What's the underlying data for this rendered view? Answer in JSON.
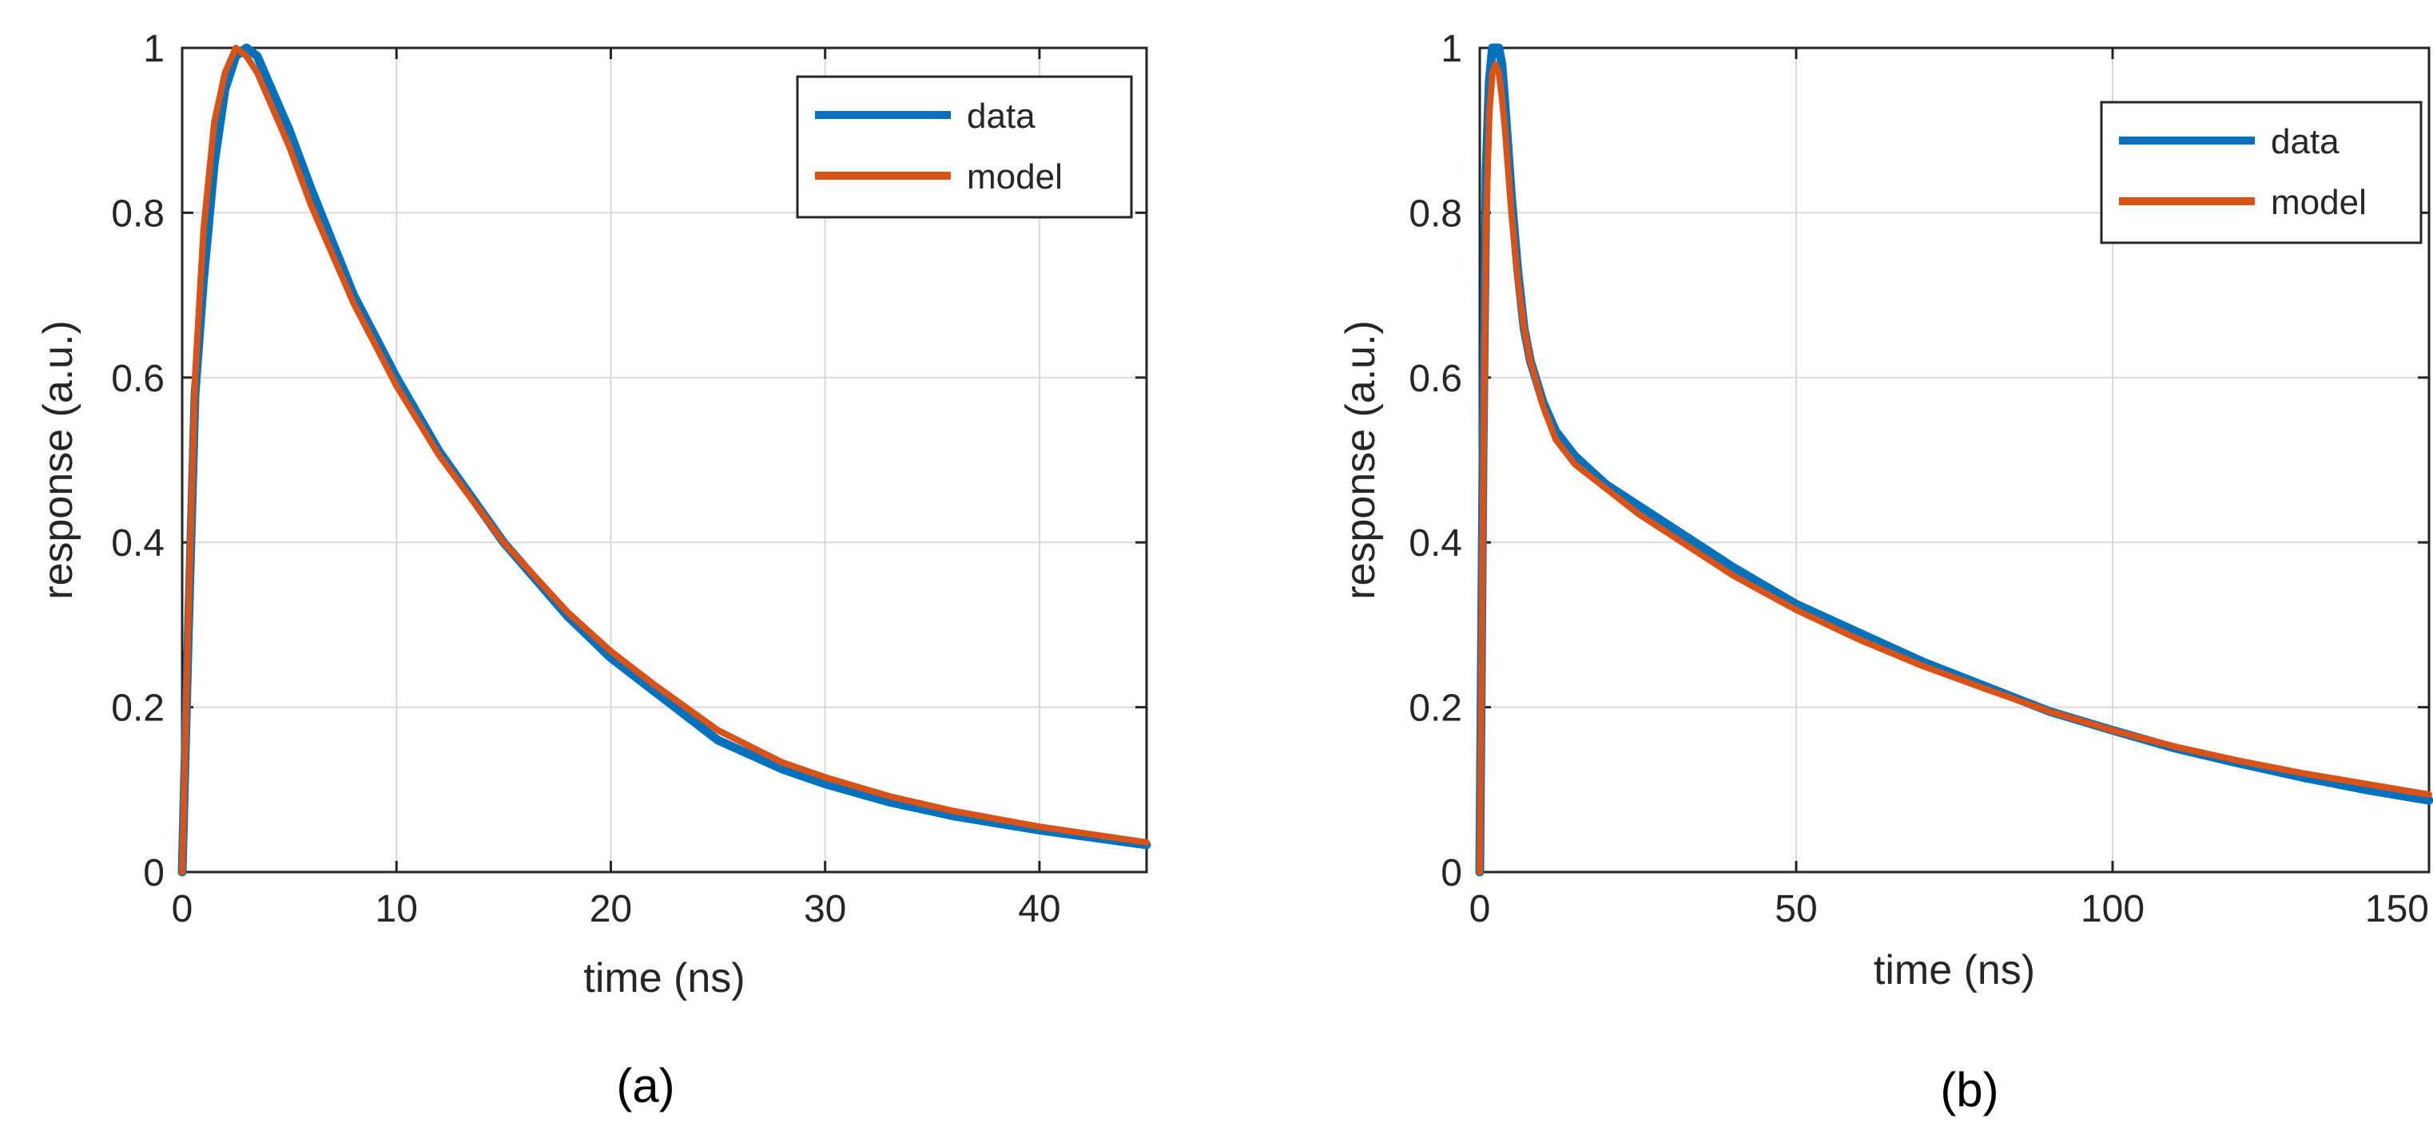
{
  "colors": {
    "data": "#0072BD",
    "model": "#D95319",
    "grid": "#d9d9d9",
    "axis": "#262626"
  },
  "chart_data": [
    {
      "type": "line",
      "caption": "(a)",
      "xlabel": "time (ns)",
      "ylabel": "response (a.u.)",
      "xlim": [
        0,
        45
      ],
      "ylim": [
        0,
        1
      ],
      "xticks": [
        0,
        10,
        20,
        30,
        40
      ],
      "yticks": [
        0,
        0.2,
        0.4,
        0.6,
        0.8,
        1
      ],
      "xtick_labels": [
        "0",
        "10",
        "20",
        "30",
        "40"
      ],
      "ytick_labels": [
        "0",
        "0.2",
        "0.4",
        "0.6",
        "0.8",
        "1"
      ],
      "grid": true,
      "legend": "top-right",
      "series": [
        {
          "name": "data",
          "x": [
            0,
            0.3,
            0.6,
            1,
            1.5,
            2,
            2.5,
            3,
            3.5,
            4,
            5,
            6,
            8,
            10,
            12,
            15,
            18,
            20,
            22,
            25,
            28,
            30,
            33,
            36,
            40,
            45
          ],
          "y": [
            0,
            0.3,
            0.58,
            0.72,
            0.86,
            0.95,
            0.99,
            1.0,
            0.99,
            0.96,
            0.9,
            0.83,
            0.7,
            0.6,
            0.51,
            0.4,
            0.31,
            0.26,
            0.22,
            0.16,
            0.125,
            0.107,
            0.085,
            0.068,
            0.051,
            0.033
          ]
        },
        {
          "name": "model",
          "x": [
            0,
            0.3,
            0.6,
            1,
            1.5,
            2,
            2.5,
            3,
            3.5,
            4,
            5,
            6,
            8,
            10,
            12,
            15,
            18,
            20,
            22,
            25,
            28,
            30,
            33,
            36,
            40,
            45
          ],
          "y": [
            0,
            0.32,
            0.6,
            0.78,
            0.91,
            0.97,
            1.0,
            0.99,
            0.97,
            0.94,
            0.88,
            0.81,
            0.69,
            0.59,
            0.505,
            0.4,
            0.315,
            0.268,
            0.228,
            0.172,
            0.133,
            0.115,
            0.092,
            0.074,
            0.055,
            0.036
          ]
        }
      ]
    },
    {
      "type": "line",
      "caption": "(b)",
      "xlabel": "time (ns)",
      "ylabel": "response (a.u.)",
      "xlim": [
        0,
        150
      ],
      "ylim": [
        0,
        1
      ],
      "xticks": [
        0,
        50,
        100,
        150
      ],
      "yticks": [
        0,
        0.2,
        0.4,
        0.6,
        0.8,
        1
      ],
      "xtick_labels": [
        "0",
        "50",
        "100",
        "150"
      ],
      "ytick_labels": [
        "0",
        "0.2",
        "0.4",
        "0.6",
        "0.8",
        "1"
      ],
      "grid": true,
      "legend": "top-right",
      "series": [
        {
          "name": "data",
          "x": [
            0,
            0.5,
            1,
            1.5,
            2,
            2.5,
            3,
            3.5,
            4,
            5,
            6,
            7,
            8,
            10,
            12,
            15,
            20,
            25,
            30,
            40,
            50,
            60,
            70,
            80,
            90,
            100,
            110,
            120,
            130,
            140,
            150
          ],
          "y": [
            0,
            0.5,
            0.85,
            0.96,
            1.0,
            1.0,
            1.0,
            0.98,
            0.93,
            0.82,
            0.73,
            0.66,
            0.62,
            0.57,
            0.535,
            0.505,
            0.47,
            0.445,
            0.42,
            0.37,
            0.325,
            0.29,
            0.255,
            0.225,
            0.195,
            0.172,
            0.15,
            0.132,
            0.115,
            0.1,
            0.087
          ]
        },
        {
          "name": "model",
          "x": [
            0,
            0.5,
            1,
            1.5,
            2,
            2.5,
            3,
            3.5,
            4,
            5,
            6,
            7,
            8,
            10,
            12,
            15,
            20,
            25,
            30,
            40,
            50,
            60,
            70,
            80,
            90,
            100,
            110,
            120,
            130,
            140,
            150
          ],
          "y": [
            0,
            0.45,
            0.78,
            0.92,
            0.97,
            0.98,
            0.97,
            0.94,
            0.9,
            0.8,
            0.72,
            0.66,
            0.62,
            0.565,
            0.525,
            0.495,
            0.465,
            0.435,
            0.41,
            0.36,
            0.318,
            0.282,
            0.25,
            0.222,
            0.195,
            0.172,
            0.152,
            0.135,
            0.12,
            0.107,
            0.094
          ]
        }
      ]
    }
  ]
}
